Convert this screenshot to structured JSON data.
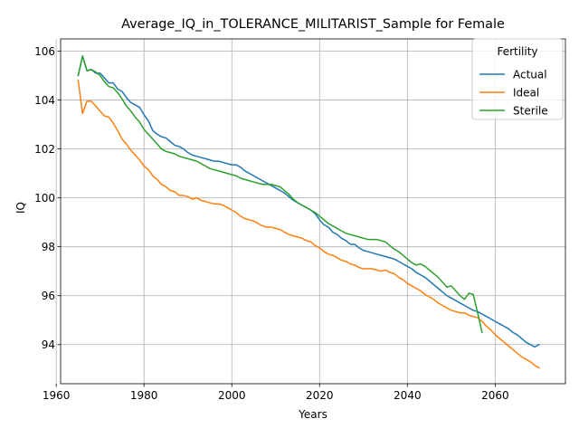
{
  "chart_data": {
    "type": "line",
    "title": "Average_IQ_in_TOLERANCE_MILITARIST_Sample for Female",
    "xlabel": "Years",
    "ylabel": "IQ",
    "xlim": [
      1961,
      2076
    ],
    "ylim": [
      92.4,
      106.5
    ],
    "xticks": [
      1960,
      1980,
      2000,
      2020,
      2040,
      2060
    ],
    "yticks": [
      94,
      96,
      98,
      100,
      102,
      104,
      106
    ],
    "grid": true,
    "legend": {
      "title": "Fertility",
      "placement": "top-right"
    },
    "series": [
      {
        "name": "Actual",
        "color": "#1f77b4",
        "x": [
          1965,
          1966,
          1967,
          1968,
          1969,
          1970,
          1971,
          1972,
          1973,
          1974,
          1975,
          1976,
          1977,
          1978,
          1979,
          1980,
          1981,
          1982,
          1983,
          1984,
          1985,
          1986,
          1987,
          1988,
          1989,
          1990,
          1991,
          1992,
          1993,
          1994,
          1995,
          1996,
          1997,
          1998,
          1999,
          2000,
          2001,
          2002,
          2003,
          2004,
          2005,
          2006,
          2007,
          2008,
          2009,
          2010,
          2011,
          2012,
          2013,
          2014,
          2015,
          2016,
          2017,
          2018,
          2019,
          2020,
          2021,
          2022,
          2023,
          2024,
          2025,
          2026,
          2027,
          2028,
          2029,
          2030,
          2031,
          2032,
          2033,
          2034,
          2035,
          2036,
          2037,
          2038,
          2039,
          2040,
          2041,
          2042,
          2043,
          2044,
          2045,
          2046,
          2047,
          2048,
          2049,
          2050,
          2051,
          2052,
          2053,
          2054,
          2055,
          2056,
          2057,
          2058,
          2059,
          2060,
          2061,
          2062,
          2063,
          2064,
          2065,
          2066,
          2067,
          2068,
          2069,
          2070
        ],
        "values": [
          105.0,
          105.8,
          105.2,
          105.25,
          105.1,
          105.1,
          104.9,
          104.7,
          104.7,
          104.45,
          104.35,
          104.1,
          103.9,
          103.8,
          103.7,
          103.4,
          103.15,
          102.75,
          102.6,
          102.5,
          102.45,
          102.3,
          102.15,
          102.1,
          102.0,
          101.85,
          101.75,
          101.7,
          101.65,
          101.6,
          101.55,
          101.5,
          101.5,
          101.45,
          101.4,
          101.35,
          101.35,
          101.25,
          101.1,
          101.0,
          100.9,
          100.8,
          100.7,
          100.6,
          100.5,
          100.4,
          100.3,
          100.2,
          100.05,
          99.9,
          99.8,
          99.7,
          99.6,
          99.5,
          99.35,
          99.1,
          98.9,
          98.8,
          98.6,
          98.5,
          98.35,
          98.25,
          98.1,
          98.1,
          97.95,
          97.85,
          97.8,
          97.75,
          97.7,
          97.65,
          97.6,
          97.55,
          97.5,
          97.4,
          97.3,
          97.2,
          97.1,
          96.95,
          96.85,
          96.75,
          96.6,
          96.45,
          96.3,
          96.15,
          96.0,
          95.9,
          95.8,
          95.7,
          95.6,
          95.5,
          95.4,
          95.35,
          95.25,
          95.15,
          95.05,
          94.95,
          94.85,
          94.75,
          94.65,
          94.5,
          94.4,
          94.25,
          94.1,
          94.0,
          93.9,
          94.0
        ]
      },
      {
        "name": "Ideal",
        "color": "#ff7f0e",
        "x": [
          1965,
          1966,
          1967,
          1968,
          1969,
          1970,
          1971,
          1972,
          1973,
          1974,
          1975,
          1976,
          1977,
          1978,
          1979,
          1980,
          1981,
          1982,
          1983,
          1984,
          1985,
          1986,
          1987,
          1988,
          1989,
          1990,
          1991,
          1992,
          1993,
          1994,
          1995,
          1996,
          1997,
          1998,
          1999,
          2000,
          2001,
          2002,
          2003,
          2004,
          2005,
          2006,
          2007,
          2008,
          2009,
          2010,
          2011,
          2012,
          2013,
          2014,
          2015,
          2016,
          2017,
          2018,
          2019,
          2020,
          2021,
          2022,
          2023,
          2024,
          2025,
          2026,
          2027,
          2028,
          2029,
          2030,
          2031,
          2032,
          2033,
          2034,
          2035,
          2036,
          2037,
          2038,
          2039,
          2040,
          2041,
          2042,
          2043,
          2044,
          2045,
          2046,
          2047,
          2048,
          2049,
          2050,
          2051,
          2052,
          2053,
          2054,
          2055,
          2056,
          2057,
          2058,
          2059,
          2060,
          2061,
          2062,
          2063,
          2064,
          2065,
          2066,
          2067,
          2068,
          2069,
          2070
        ],
        "values": [
          104.8,
          103.45,
          103.95,
          103.95,
          103.75,
          103.55,
          103.35,
          103.3,
          103.05,
          102.75,
          102.4,
          102.2,
          101.95,
          101.75,
          101.55,
          101.3,
          101.15,
          100.9,
          100.75,
          100.55,
          100.45,
          100.3,
          100.25,
          100.1,
          100.1,
          100.05,
          99.95,
          100.0,
          99.9,
          99.85,
          99.8,
          99.75,
          99.75,
          99.7,
          99.6,
          99.5,
          99.4,
          99.25,
          99.15,
          99.1,
          99.05,
          98.95,
          98.85,
          98.8,
          98.8,
          98.75,
          98.7,
          98.6,
          98.5,
          98.45,
          98.4,
          98.35,
          98.25,
          98.2,
          98.05,
          97.95,
          97.8,
          97.7,
          97.65,
          97.55,
          97.45,
          97.4,
          97.3,
          97.25,
          97.15,
          97.1,
          97.1,
          97.1,
          97.05,
          97.0,
          97.05,
          96.95,
          96.9,
          96.75,
          96.65,
          96.5,
          96.4,
          96.3,
          96.2,
          96.05,
          95.95,
          95.85,
          95.7,
          95.6,
          95.5,
          95.4,
          95.35,
          95.3,
          95.3,
          95.2,
          95.15,
          95.1,
          94.95,
          94.75,
          94.6,
          94.4,
          94.25,
          94.1,
          93.95,
          93.8,
          93.65,
          93.5,
          93.4,
          93.3,
          93.15,
          93.05
        ]
      },
      {
        "name": "Sterile",
        "color": "#2ca02c",
        "x": [
          1965,
          1966,
          1967,
          1968,
          1969,
          1970,
          1971,
          1972,
          1973,
          1974,
          1975,
          1976,
          1977,
          1978,
          1979,
          1980,
          1981,
          1982,
          1983,
          1984,
          1985,
          1986,
          1987,
          1988,
          1989,
          1990,
          1991,
          1992,
          1993,
          1994,
          1995,
          1996,
          1997,
          1998,
          1999,
          2000,
          2001,
          2002,
          2003,
          2004,
          2005,
          2006,
          2007,
          2008,
          2009,
          2010,
          2011,
          2012,
          2013,
          2014,
          2015,
          2016,
          2017,
          2018,
          2019,
          2020,
          2021,
          2022,
          2023,
          2024,
          2025,
          2026,
          2027,
          2028,
          2029,
          2030,
          2031,
          2032,
          2033,
          2034,
          2035,
          2036,
          2037,
          2038,
          2039,
          2040,
          2041,
          2042,
          2043,
          2044,
          2045,
          2046,
          2047,
          2048,
          2049,
          2050,
          2051,
          2052,
          2053,
          2054,
          2055,
          2056,
          2057
        ],
        "values": [
          105.0,
          105.8,
          105.2,
          105.25,
          105.15,
          105.0,
          104.75,
          104.55,
          104.5,
          104.3,
          104.05,
          103.75,
          103.55,
          103.3,
          103.1,
          102.8,
          102.6,
          102.4,
          102.2,
          102.0,
          101.9,
          101.85,
          101.8,
          101.7,
          101.65,
          101.6,
          101.55,
          101.5,
          101.4,
          101.3,
          101.2,
          101.15,
          101.1,
          101.05,
          101.0,
          100.95,
          100.9,
          100.8,
          100.75,
          100.7,
          100.65,
          100.6,
          100.55,
          100.55,
          100.55,
          100.5,
          100.45,
          100.3,
          100.15,
          99.95,
          99.8,
          99.7,
          99.6,
          99.5,
          99.4,
          99.25,
          99.1,
          98.95,
          98.85,
          98.75,
          98.65,
          98.55,
          98.5,
          98.45,
          98.4,
          98.35,
          98.3,
          98.3,
          98.3,
          98.25,
          98.2,
          98.05,
          97.9,
          97.8,
          97.65,
          97.5,
          97.35,
          97.25,
          97.3,
          97.2,
          97.05,
          96.9,
          96.75,
          96.55,
          96.35,
          96.4,
          96.2,
          96.0,
          95.85,
          96.1,
          96.05,
          95.3,
          94.5
        ]
      }
    ]
  }
}
